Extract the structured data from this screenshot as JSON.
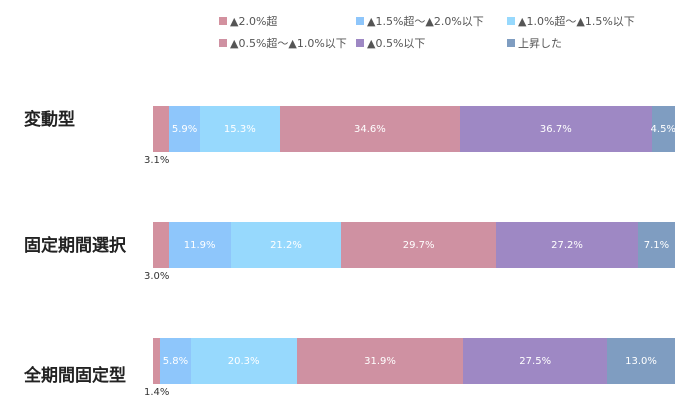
{
  "chart_data": {
    "type": "bar",
    "orientation": "horizontal",
    "stacked": true,
    "normalized": true,
    "legend_position": "top",
    "grid": false,
    "categories": [
      "変動型",
      "固定期間選択",
      "全期間固定型"
    ],
    "series": [
      {
        "name": "▲2.0%超",
        "color": "#d3919f",
        "values": [
          3.1,
          3.0,
          1.4
        ],
        "labels": [
          "3.1%",
          "3.0%",
          "1.4%"
        ]
      },
      {
        "name": "▲1.5%超～▲2.0%以下",
        "color": "#8ec6fb",
        "values": [
          5.9,
          11.9,
          5.8
        ],
        "labels": [
          "5.9%",
          "11.9%",
          "5.8%"
        ]
      },
      {
        "name": "▲1.0%超～▲1.5%以下",
        "color": "#97d9fd",
        "values": [
          15.3,
          21.2,
          20.3
        ],
        "labels": [
          "15.3%",
          "21.2%",
          "20.3%"
        ]
      },
      {
        "name": "▲0.5%超～▲1.0%以下",
        "color": "#cf91a2",
        "values": [
          34.6,
          29.7,
          31.9
        ],
        "labels": [
          "34.6%",
          "29.7%",
          "31.9%"
        ]
      },
      {
        "name": "▲0.5%以下",
        "color": "#9e88c4",
        "values": [
          36.7,
          27.2,
          27.5
        ],
        "labels": [
          "36.7%",
          "27.2%",
          "27.5%"
        ]
      },
      {
        "name": "上昇した",
        "color": "#7f9dc1",
        "values": [
          4.5,
          7.1,
          13.0
        ],
        "labels": [
          "4.5%",
          "7.1%",
          "13.0%"
        ]
      }
    ]
  }
}
